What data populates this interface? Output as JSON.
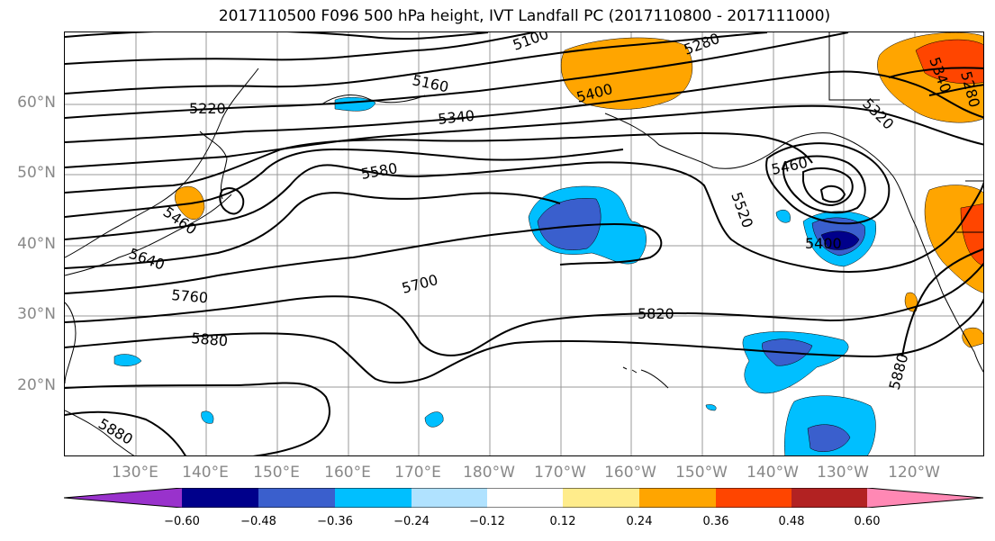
{
  "title": "2017110500 F096 500 hPa height, IVT Landfall PC (2017110800 - 2017111000)",
  "lat_labels": [
    "60°N",
    "50°N",
    "40°N",
    "30°N",
    "20°N"
  ],
  "lon_labels": [
    "130°E",
    "140°E",
    "150°E",
    "160°E",
    "170°E",
    "180°W",
    "170°W",
    "160°W",
    "150°W",
    "140°W",
    "130°W",
    "120°W"
  ],
  "contour_labels": [
    "5220",
    "5160",
    "5340",
    "5580",
    "5460",
    "5640",
    "5760",
    "5700",
    "5820",
    "5880",
    "5880",
    "5880",
    "5460",
    "5520",
    "5400",
    "5280",
    "5320",
    "5100",
    "5400",
    "5340",
    "5280"
  ],
  "colorbar": {
    "ticks": [
      "−0.60",
      "−0.48",
      "−0.36",
      "−0.24",
      "−0.12",
      "0.12",
      "0.24",
      "0.36",
      "0.48",
      "0.60"
    ],
    "colors": [
      "#9932cc",
      "#00008b",
      "#3a5fcd",
      "#00bfff",
      "#b0e2ff",
      "#ffffff",
      "#ffec8b",
      "#ffa500",
      "#ff4500",
      "#b22222",
      "#ff88b4"
    ]
  }
}
